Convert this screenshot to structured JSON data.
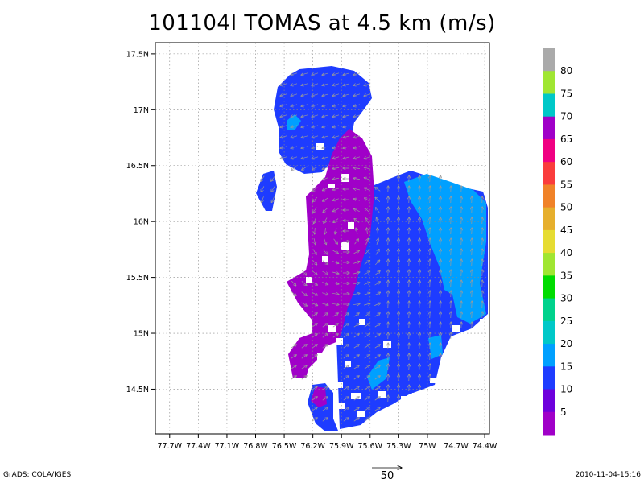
{
  "title": "101104I TOMAS at 4.5 km (m/s)",
  "footer": {
    "credit": "GrADS: COLA/IGES",
    "timestamp": "2010-11-04-15:16",
    "reference_vector_label": "50"
  },
  "chart_data": {
    "type": "heatmap",
    "title": "101104I TOMAS at 4.5 km (m/s)",
    "x_axis": {
      "range_deg": [
        -77.85,
        -74.35
      ],
      "ticks": [
        -77.7,
        -77.4,
        -77.1,
        -76.8,
        -76.5,
        -76.2,
        -75.9,
        -75.6,
        -75.3,
        -75.0,
        -74.7,
        -74.4
      ],
      "tick_labels": [
        "77.7W",
        "77.4W",
        "77.1W",
        "76.8W",
        "76.5W",
        "76.2W",
        "75.9W",
        "75.6W",
        "75.3W",
        "75W",
        "74.7W",
        "74.4W"
      ]
    },
    "y_axis": {
      "range_deg": [
        14.1,
        17.6
      ],
      "ticks": [
        14.5,
        15.0,
        15.5,
        16.0,
        16.5,
        17.0,
        17.5
      ],
      "tick_labels": [
        "14.5N",
        "15N",
        "15.5N",
        "16N",
        "16.5N",
        "17N",
        "17.5N"
      ]
    },
    "grid": true,
    "colorbar": {
      "labels": [
        "5",
        "10",
        "15",
        "20",
        "25",
        "30",
        "35",
        "40",
        "45",
        "50",
        "55",
        "60",
        "65",
        "70",
        "75",
        "80"
      ],
      "colors": [
        "#a000c8",
        "#6e00dc",
        "#1e3cff",
        "#00a0ff",
        "#00c8c8",
        "#00d28c",
        "#00dc00",
        "#a0e632",
        "#e6dc32",
        "#e6af2d",
        "#f08228",
        "#fa3c3c",
        "#f00082",
        "#a000c8",
        "#00c8c8",
        "#a0e632",
        "#aaaaaa"
      ]
    },
    "wind_field": {
      "regions": [
        {
          "name": "northern lobe",
          "lon": [
            -76.6,
            -75.8
          ],
          "lat": [
            16.45,
            17.4
          ],
          "speed_band": "10-15",
          "direction": "westward"
        },
        {
          "name": "western band",
          "lon": [
            -76.3,
            -75.65
          ],
          "lat": [
            14.3,
            16.7
          ],
          "speed_band": "5-10",
          "direction": "curving around center"
        },
        {
          "name": "eastern body",
          "lon": [
            -75.75,
            -74.4
          ],
          "lat": [
            14.2,
            16.4
          ],
          "speed_band": "10-15",
          "direction": "northward"
        },
        {
          "name": "eastern core",
          "lon": [
            -75.2,
            -74.4
          ],
          "lat": [
            15.2,
            16.4
          ],
          "speed_band": "15-20",
          "direction": "northward"
        }
      ]
    }
  }
}
